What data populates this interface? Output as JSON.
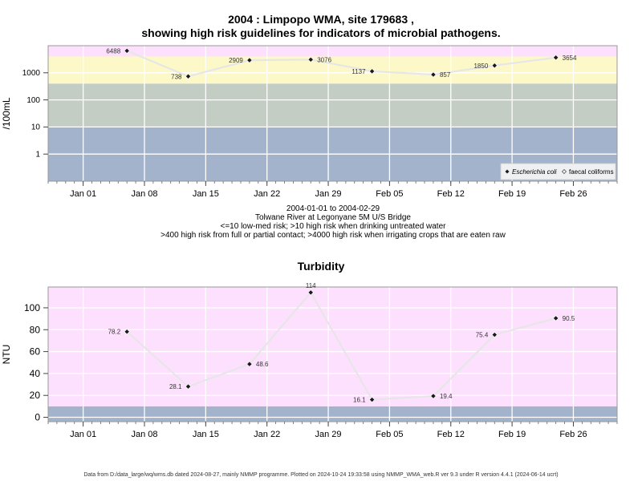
{
  "top_title_line1": "2004 : Limpopo WMA, site 179683 ,",
  "top_title_line2": "showing high risk guidelines for indicators of microbial pathogens.",
  "caption_lines": [
    "2004-01-01 to 2004-02-29",
    "Tolwane River at Legonyane 5M U/S Bridge",
    "<=10 low-med risk; >10 high risk when drinking untreated water",
    ">400 high risk from full or partial contact; >4000 high risk when irrigating crops that are eaten raw"
  ],
  "footer": "Data from D:/data_large/wq/wms.db dated 2024-08-27, mainly NMMP programme. Plotted on 2024-10-24 19:33:58 using NMMP_WMA_web.R ver 9.3 under R version 4.4.1 (2024-06-14 ucrt)",
  "colors": {
    "risk_low": "#a3b3cc",
    "risk_med": "#c3cdc3",
    "risk_high": "#fdf8c8",
    "risk_very_high": "#fde0fd",
    "line": "#e6e6e6",
    "point": "#1a1a1a"
  },
  "chart_data": [
    {
      "type": "line",
      "title": "",
      "ylabel": "/100mL",
      "yscale": "log",
      "yticks": [
        1,
        10,
        100,
        1000
      ],
      "ytick_labels": [
        "1",
        "10",
        "100",
        "1000"
      ],
      "ylim": [
        0.1,
        10000
      ],
      "x_start": "2003-12-28",
      "x_end": "2004-03-02",
      "xticks": [
        "2004-01-01",
        "2004-01-08",
        "2004-01-15",
        "2004-01-22",
        "2004-01-29",
        "2004-02-05",
        "2004-02-12",
        "2004-02-19",
        "2004-02-26"
      ],
      "xtick_labels": [
        "Jan 01",
        "Jan 08",
        "Jan 15",
        "Jan 22",
        "Jan 29",
        "Feb 05",
        "Feb 12",
        "Feb 19",
        "Feb 26"
      ],
      "bands": [
        {
          "from": 0.1,
          "to": 10,
          "color": "risk_low"
        },
        {
          "from": 10,
          "to": 400,
          "color": "risk_med"
        },
        {
          "from": 400,
          "to": 4000,
          "color": "risk_high"
        },
        {
          "from": 4000,
          "to": 10000,
          "color": "risk_very_high"
        }
      ],
      "series": [
        {
          "name": "Escherichia coli",
          "x": [
            "2004-01-06",
            "2004-01-13",
            "2004-01-20",
            "2004-01-27",
            "2004-02-03",
            "2004-02-10",
            "2004-02-17",
            "2004-02-24"
          ],
          "values": [
            6488,
            738,
            2909,
            3076,
            1137,
            857,
            1850,
            3654
          ],
          "labels": [
            "6488",
            "738",
            "2909",
            "3076",
            "1137",
            "857",
            "1850",
            "3654"
          ],
          "label_side": [
            "left",
            "left",
            "left",
            "right",
            "left",
            "right",
            "left",
            "right"
          ]
        }
      ],
      "legend": {
        "placement": "bottom-right",
        "entries": [
          "Escherichia coli",
          "faecal coliforms"
        ]
      }
    },
    {
      "type": "line",
      "title": "Turbidity",
      "ylabel": "NTU",
      "yscale": "linear",
      "yticks": [
        0,
        20,
        40,
        60,
        80,
        100
      ],
      "ytick_labels": [
        "0",
        "20",
        "40",
        "60",
        "80",
        "100"
      ],
      "ylim": [
        -4,
        119
      ],
      "x_start": "2003-12-28",
      "x_end": "2004-03-02",
      "xticks": [
        "2004-01-01",
        "2004-01-08",
        "2004-01-15",
        "2004-01-22",
        "2004-01-29",
        "2004-02-05",
        "2004-02-12",
        "2004-02-19",
        "2004-02-26"
      ],
      "xtick_labels": [
        "Jan 01",
        "Jan 08",
        "Jan 15",
        "Jan 22",
        "Jan 29",
        "Feb 05",
        "Feb 12",
        "Feb 19",
        "Feb 26"
      ],
      "bands": [
        {
          "from": -4,
          "to": 10,
          "color": "risk_low"
        },
        {
          "from": 10,
          "to": 119,
          "color": "risk_very_high"
        }
      ],
      "series": [
        {
          "name": "",
          "x": [
            "2004-01-06",
            "2004-01-13",
            "2004-01-20",
            "2004-01-27",
            "2004-02-03",
            "2004-02-10",
            "2004-02-17",
            "2004-02-24"
          ],
          "values": [
            78.2,
            28.1,
            48.6,
            114,
            16.1,
            19.4,
            75.4,
            90.5
          ],
          "labels": [
            "78.2",
            "28.1",
            "48.6",
            "114",
            "16.1",
            "19.4",
            "75.4",
            "90.5"
          ],
          "label_side": [
            "left",
            "left",
            "right",
            "top",
            "left",
            "right",
            "left",
            "right"
          ]
        }
      ]
    }
  ]
}
